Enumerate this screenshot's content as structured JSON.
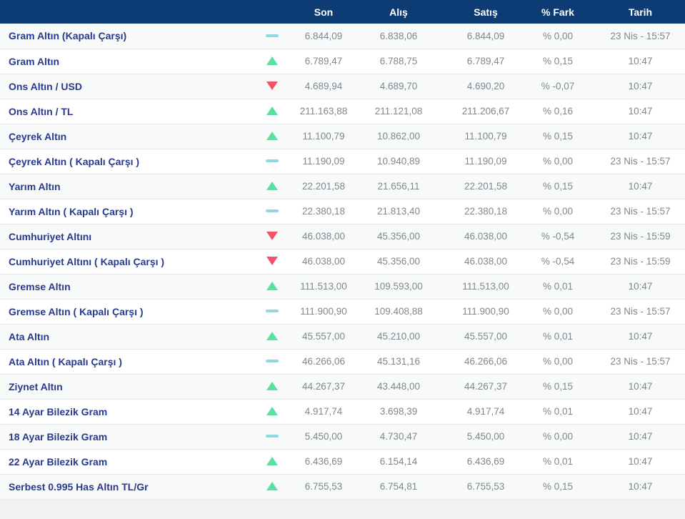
{
  "table": {
    "columns": {
      "son": "Son",
      "alis": "Alış",
      "satis": "Satış",
      "fark": "% Fark",
      "tarih": "Tarih"
    },
    "rows": [
      {
        "label": "Gram Altın (Kapalı Çarşı)",
        "change": "flat",
        "son": "6.844,09",
        "alis": "6.838,06",
        "satis": "6.844,09",
        "fark": "% 0,00",
        "tarih": "23 Nis - 15:57"
      },
      {
        "label": "Gram Altın",
        "change": "up",
        "son": "6.789,47",
        "alis": "6.788,75",
        "satis": "6.789,47",
        "fark": "% 0,15",
        "tarih": "10:47"
      },
      {
        "label": "Ons Altın / USD",
        "change": "down",
        "son": "4.689,94",
        "alis": "4.689,70",
        "satis": "4.690,20",
        "fark": "% -0,07",
        "tarih": "10:47"
      },
      {
        "label": "Ons Altın / TL",
        "change": "up",
        "son": "211.163,88",
        "alis": "211.121,08",
        "satis": "211.206,67",
        "fark": "% 0,16",
        "tarih": "10:47"
      },
      {
        "label": "Çeyrek Altın",
        "change": "up",
        "son": "11.100,79",
        "alis": "10.862,00",
        "satis": "11.100,79",
        "fark": "% 0,15",
        "tarih": "10:47"
      },
      {
        "label": "Çeyrek Altın ( Kapalı Çarşı )",
        "change": "flat",
        "son": "11.190,09",
        "alis": "10.940,89",
        "satis": "11.190,09",
        "fark": "% 0,00",
        "tarih": "23 Nis - 15:57"
      },
      {
        "label": "Yarım Altın",
        "change": "up",
        "son": "22.201,58",
        "alis": "21.656,11",
        "satis": "22.201,58",
        "fark": "% 0,15",
        "tarih": "10:47"
      },
      {
        "label": "Yarım Altın ( Kapalı Çarşı )",
        "change": "flat",
        "son": "22.380,18",
        "alis": "21.813,40",
        "satis": "22.380,18",
        "fark": "% 0,00",
        "tarih": "23 Nis - 15:57"
      },
      {
        "label": "Cumhuriyet Altını",
        "change": "down",
        "son": "46.038,00",
        "alis": "45.356,00",
        "satis": "46.038,00",
        "fark": "% -0,54",
        "tarih": "23 Nis - 15:59"
      },
      {
        "label": "Cumhuriyet Altını ( Kapalı Çarşı )",
        "change": "down",
        "son": "46.038,00",
        "alis": "45.356,00",
        "satis": "46.038,00",
        "fark": "% -0,54",
        "tarih": "23 Nis - 15:59"
      },
      {
        "label": "Gremse Altın",
        "change": "up",
        "son": "111.513,00",
        "alis": "109.593,00",
        "satis": "111.513,00",
        "fark": "% 0,01",
        "tarih": "10:47"
      },
      {
        "label": "Gremse Altın ( Kapalı Çarşı )",
        "change": "flat",
        "son": "111.900,90",
        "alis": "109.408,88",
        "satis": "111.900,90",
        "fark": "% 0,00",
        "tarih": "23 Nis - 15:57"
      },
      {
        "label": "Ata Altın",
        "change": "up",
        "son": "45.557,00",
        "alis": "45.210,00",
        "satis": "45.557,00",
        "fark": "% 0,01",
        "tarih": "10:47"
      },
      {
        "label": "Ata Altın ( Kapalı Çarşı )",
        "change": "flat",
        "son": "46.266,06",
        "alis": "45.131,16",
        "satis": "46.266,06",
        "fark": "% 0,00",
        "tarih": "23 Nis - 15:57"
      },
      {
        "label": "Ziynet Altın",
        "change": "up",
        "son": "44.267,37",
        "alis": "43.448,00",
        "satis": "44.267,37",
        "fark": "% 0,15",
        "tarih": "10:47"
      },
      {
        "label": "14 Ayar Bilezik Gram",
        "change": "up",
        "son": "4.917,74",
        "alis": "3.698,39",
        "satis": "4.917,74",
        "fark": "% 0,01",
        "tarih": "10:47"
      },
      {
        "label": "18 Ayar Bilezik Gram",
        "change": "flat",
        "son": "5.450,00",
        "alis": "4.730,47",
        "satis": "5.450,00",
        "fark": "% 0,00",
        "tarih": "10:47"
      },
      {
        "label": "22 Ayar Bilezik Gram",
        "change": "up",
        "son": "6.436,69",
        "alis": "6.154,14",
        "satis": "6.436,69",
        "fark": "% 0,01",
        "tarih": "10:47"
      },
      {
        "label": "Serbest 0.995 Has Altın TL/Gr",
        "change": "up",
        "son": "6.755,53",
        "alis": "6.754,81",
        "satis": "6.755,53",
        "fark": "% 0,15",
        "tarih": "10:47"
      }
    ]
  },
  "icons": {
    "up": "up-triangle-icon",
    "down": "down-triangle-icon",
    "flat": "no-change-dash-icon"
  },
  "colors": {
    "header_bg": "#0d3c74",
    "label_text": "#283a8d",
    "value_text": "#7e8890",
    "up": "#57e2a0",
    "down": "#f8506b",
    "flat": "#8fd8de",
    "row_alt": "#f8f9f9",
    "border": "#e7e8e9",
    "page_bg": "#f1f1f2"
  }
}
